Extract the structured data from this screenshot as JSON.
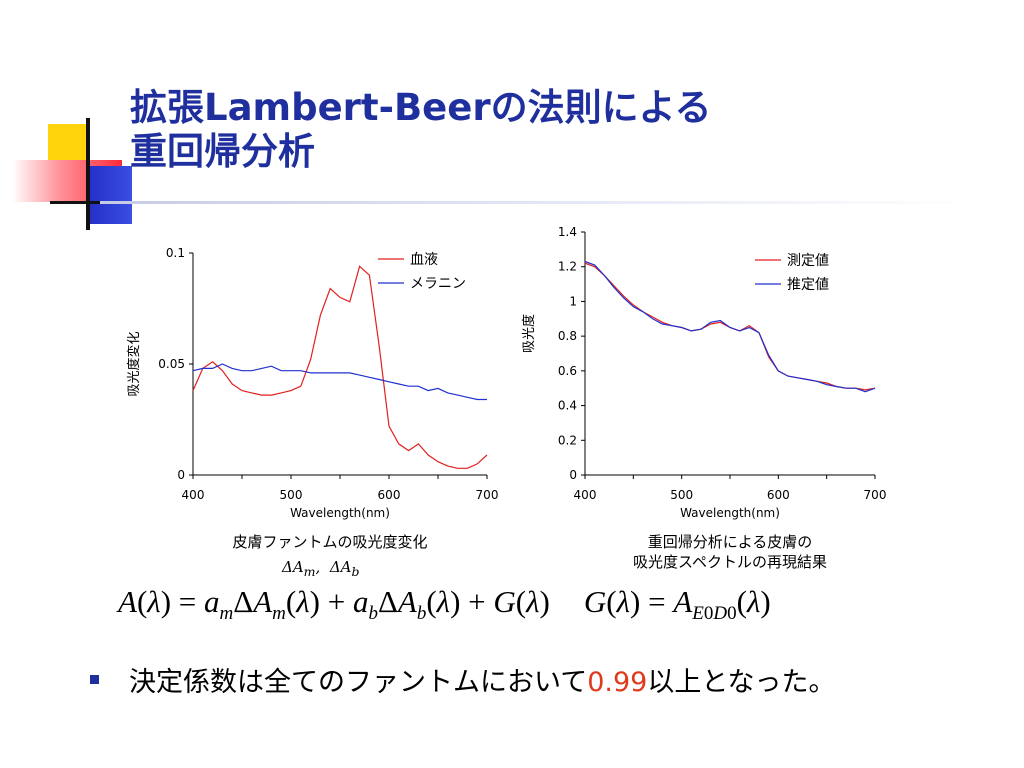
{
  "slide": {
    "title_line1": "拡張Lambert-Beerの法則による",
    "title_line2": "重回帰分析",
    "bullet_before": "決定係数は全てのファントムにおいて",
    "bullet_highlight": "0.99",
    "bullet_after": "以上となった。",
    "accent_color": "#1f2f9e",
    "highlight_color": "#e03a1e"
  },
  "captions": {
    "left": "皮膚ファントムの吸光度変化",
    "left_symbols": "ΔA m , ΔA b",
    "right_line1": "重回帰分析による皮膚の",
    "right_line2": "吸光度スペクトルの再現結果"
  },
  "equation": {
    "text": "A(λ) = a_m ΔA_m(λ) + a_b ΔA_b(λ) + G(λ)    G(λ) = A_E0D0(λ)"
  },
  "chart_data": [
    {
      "type": "line",
      "xlabel": "Wavelength(nm)",
      "ylabel": "吸光度変化",
      "xlim": [
        400,
        700
      ],
      "ylim": [
        0,
        0.1
      ],
      "xticks": [
        "400",
        "500",
        "600",
        "700"
      ],
      "yticks": [
        "0",
        "0.05",
        "0.1"
      ],
      "legend_position": "top-right",
      "grid": false,
      "series": [
        {
          "name": "血液",
          "color": "#e02020",
          "x": [
            400,
            410,
            420,
            430,
            440,
            450,
            460,
            470,
            480,
            490,
            500,
            510,
            520,
            530,
            540,
            550,
            560,
            570,
            580,
            590,
            600,
            610,
            620,
            630,
            640,
            650,
            660,
            670,
            680,
            690,
            700
          ],
          "y": [
            0.038,
            0.048,
            0.051,
            0.047,
            0.041,
            0.038,
            0.037,
            0.036,
            0.036,
            0.037,
            0.038,
            0.04,
            0.052,
            0.072,
            0.084,
            0.08,
            0.078,
            0.094,
            0.09,
            0.058,
            0.022,
            0.014,
            0.011,
            0.014,
            0.009,
            0.006,
            0.004,
            0.003,
            0.003,
            0.005,
            0.009
          ]
        },
        {
          "name": "メラニン",
          "color": "#2030d0",
          "x": [
            400,
            410,
            420,
            430,
            440,
            450,
            460,
            470,
            480,
            490,
            500,
            510,
            520,
            530,
            540,
            550,
            560,
            570,
            580,
            590,
            600,
            610,
            620,
            630,
            640,
            650,
            660,
            670,
            680,
            690,
            700
          ],
          "y": [
            0.047,
            0.048,
            0.048,
            0.05,
            0.048,
            0.047,
            0.047,
            0.048,
            0.049,
            0.047,
            0.047,
            0.047,
            0.046,
            0.046,
            0.046,
            0.046,
            0.046,
            0.045,
            0.044,
            0.043,
            0.042,
            0.041,
            0.04,
            0.04,
            0.038,
            0.039,
            0.037,
            0.036,
            0.035,
            0.034,
            0.034
          ]
        }
      ]
    },
    {
      "type": "line",
      "xlabel": "Wavelength(nm)",
      "ylabel": "吸光度",
      "xlim": [
        400,
        700
      ],
      "ylim": [
        0,
        1.4
      ],
      "xticks": [
        "400",
        "500",
        "600",
        "700"
      ],
      "yticks": [
        "0",
        "0.2",
        "0.4",
        "0.6",
        "0.8",
        "1",
        "1.2",
        "1.4"
      ],
      "legend_position": "top-right",
      "grid": false,
      "series": [
        {
          "name": "測定値",
          "color": "#e02020",
          "x": [
            400,
            410,
            420,
            430,
            440,
            450,
            460,
            470,
            480,
            490,
            500,
            510,
            520,
            530,
            540,
            550,
            560,
            570,
            580,
            590,
            600,
            610,
            620,
            630,
            640,
            650,
            660,
            670,
            680,
            690,
            700
          ],
          "y": [
            1.22,
            1.2,
            1.15,
            1.09,
            1.03,
            0.98,
            0.94,
            0.91,
            0.88,
            0.86,
            0.85,
            0.83,
            0.84,
            0.87,
            0.88,
            0.85,
            0.83,
            0.86,
            0.82,
            0.68,
            0.6,
            0.57,
            0.56,
            0.55,
            0.54,
            0.53,
            0.51,
            0.5,
            0.5,
            0.49,
            0.5
          ]
        },
        {
          "name": "推定値",
          "color": "#2030d0",
          "x": [
            400,
            410,
            420,
            430,
            440,
            450,
            460,
            470,
            480,
            490,
            500,
            510,
            520,
            530,
            540,
            550,
            560,
            570,
            580,
            590,
            600,
            610,
            620,
            630,
            640,
            650,
            660,
            670,
            680,
            690,
            700
          ],
          "y": [
            1.23,
            1.21,
            1.15,
            1.08,
            1.02,
            0.97,
            0.94,
            0.9,
            0.87,
            0.86,
            0.85,
            0.83,
            0.84,
            0.88,
            0.89,
            0.85,
            0.83,
            0.85,
            0.82,
            0.69,
            0.6,
            0.57,
            0.56,
            0.55,
            0.54,
            0.52,
            0.51,
            0.5,
            0.5,
            0.48,
            0.5
          ]
        }
      ]
    }
  ]
}
